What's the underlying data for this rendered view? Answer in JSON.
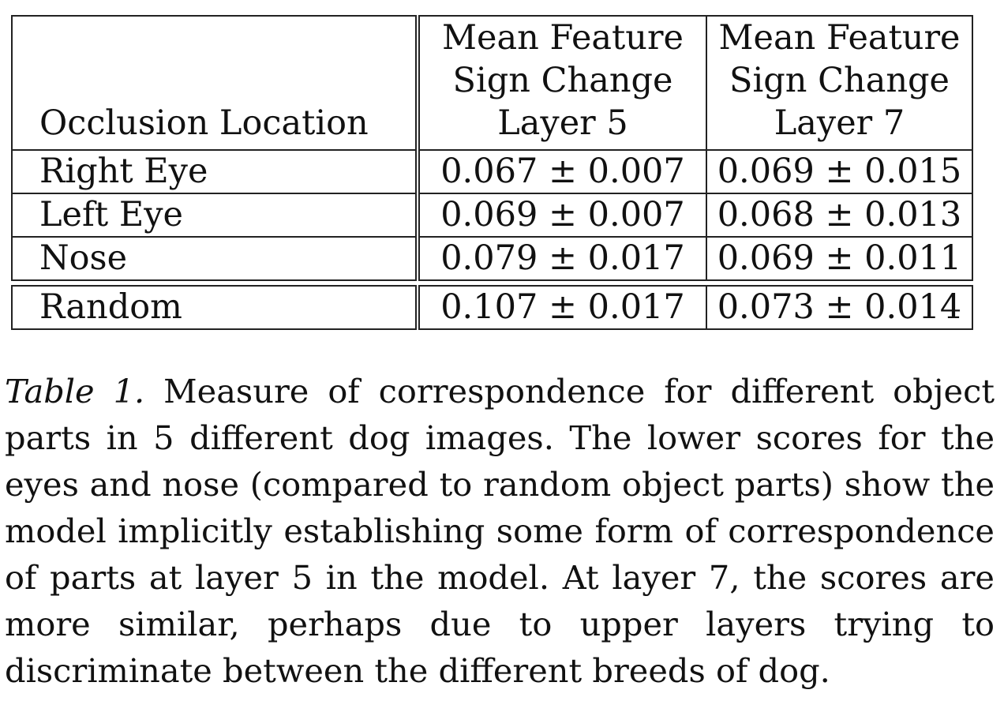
{
  "table": {
    "header": {
      "col1": "Occlusion Location",
      "col2": [
        "Mean Feature",
        "Sign Change",
        "Layer 5"
      ],
      "col3": [
        "Mean Feature",
        "Sign Change",
        "Layer 7"
      ]
    },
    "rows": [
      {
        "location": "Right Eye",
        "layer5": "0.067 ± 0.007",
        "layer7": "0.069 ± 0.015"
      },
      {
        "location": "Left Eye",
        "layer5": "0.069 ± 0.007",
        "layer7": "0.068 ± 0.013"
      },
      {
        "location": "Nose",
        "layer5": "0.079 ± 0.017",
        "layer7": "0.069 ± 0.011"
      }
    ],
    "random_row": {
      "location": "Random",
      "layer5": "0.107 ± 0.017",
      "layer7": "0.073 ± 0.014"
    }
  },
  "caption": {
    "label": "Table 1.",
    "text": "Measure of correspondence for different object parts in 5 different dog images. The lower scores for the eyes and nose (compared to random object parts) show the model implicitly establishing some form of correspondence of parts at layer 5 in the model. At layer 7, the scores are more similar, perhaps due to upper layers trying to discriminate between the different breeds of dog."
  }
}
